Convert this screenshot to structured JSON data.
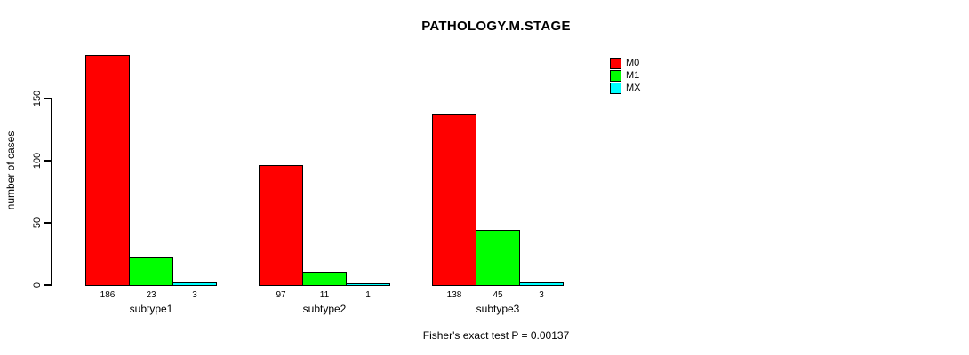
{
  "chart_data": {
    "type": "bar",
    "title": "PATHOLOGY.M.STAGE",
    "ylabel": "number of cases",
    "xlabel": "",
    "categories": [
      "subtype1",
      "subtype2",
      "subtype3"
    ],
    "series": [
      {
        "name": "M0",
        "color": "#FF0000",
        "values": [
          186,
          97,
          138
        ]
      },
      {
        "name": "M1",
        "color": "#00FF00",
        "values": [
          23,
          11,
          45
        ]
      },
      {
        "name": "MX",
        "color": "#00FFFF",
        "values": [
          3,
          1,
          3
        ]
      }
    ],
    "bar_value_labels": [
      [
        186,
        23,
        3
      ],
      [
        97,
        11,
        1
      ],
      [
        138,
        45,
        3
      ]
    ],
    "yticks": [
      0,
      50,
      100,
      150
    ],
    "ylim": [
      0,
      190
    ],
    "grid": false,
    "legend_position": "top-right",
    "annotation": "Fisher's exact test P = 0.00137"
  }
}
